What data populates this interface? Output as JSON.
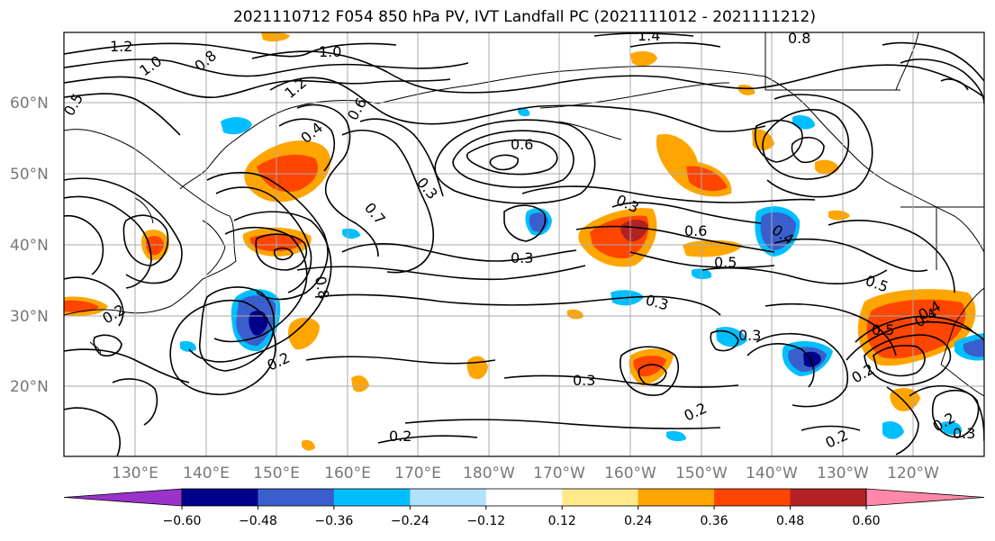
{
  "title": "2021110712 F054 850 hPa PV, IVT Landfall PC (2021111012 - 2021111212)",
  "lat_labels": [
    "60°N",
    "50°N",
    "40°N",
    "30°N",
    "20°N"
  ],
  "lon_labels": [
    "130°E",
    "140°E",
    "150°E",
    "160°E",
    "170°E",
    "180°W",
    "170°W",
    "160°W",
    "150°W",
    "140°W",
    "130°W",
    "120°W"
  ],
  "contour_labels": [
    "1.2",
    "1.0",
    "1.0",
    "0.8",
    "1.4",
    "0.8",
    "0.4",
    "1.2",
    "0.6",
    "0.6",
    "0.4",
    "0.3",
    "0.7",
    "0.3",
    "0.3",
    "0.6",
    "0.5",
    "0.4",
    "0.5",
    "0.3",
    "0.3",
    "0.3",
    "0.2",
    "0.2",
    "0.2",
    "0.2",
    "0.5",
    "0.4",
    "0.3",
    "0.2",
    "0.2",
    "0.8",
    "0.5",
    "0.2"
  ],
  "colorbar": {
    "ticks": [
      "−0.60",
      "−0.48",
      "−0.36",
      "−0.24",
      "−0.12",
      "0.12",
      "0.24",
      "0.36",
      "0.48",
      "0.60"
    ],
    "colors": [
      "#9933cc",
      "#00008b",
      "#3a5fcd",
      "#00bfff",
      "#b0e2ff",
      "#ffffff",
      "#ffe98a",
      "#ffa500",
      "#ff4500",
      "#b22222",
      "#ff88aa"
    ]
  },
  "colors": {
    "grid": "#aaaaaa",
    "contour": "#000000",
    "axis_label": "#777777"
  }
}
